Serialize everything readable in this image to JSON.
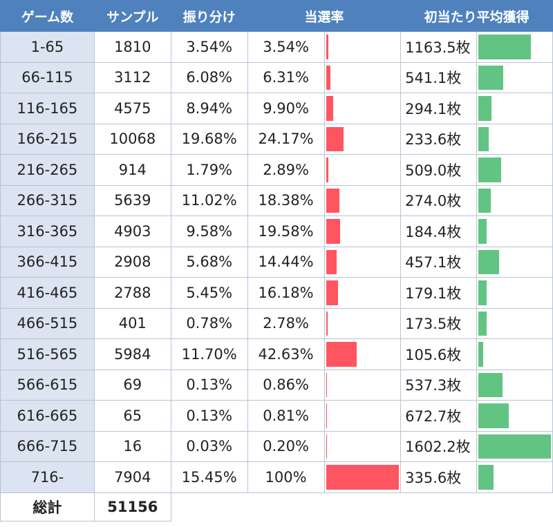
{
  "headers": {
    "games": "ゲーム数",
    "sample": "サンプル",
    "dist": "振り分け",
    "rate": "当選率",
    "avg": "初当たり平均獲得"
  },
  "colors": {
    "header_bg": "#4f81bd",
    "range_bg": "#dbe4f0",
    "rate_bar": "#ff5561",
    "avg_bar": "#62c482"
  },
  "rows": [
    {
      "range": "1-65",
      "sample": "1810",
      "dist": "3.54%",
      "rate": "3.54%",
      "avg": "1163.5枚",
      "rate_value": 3.54,
      "avg_value": 1163.5
    },
    {
      "range": "66-115",
      "sample": "3112",
      "dist": "6.08%",
      "rate": "6.31%",
      "avg": "541.1枚",
      "rate_value": 6.31,
      "avg_value": 541.1
    },
    {
      "range": "116-165",
      "sample": "4575",
      "dist": "8.94%",
      "rate": "9.90%",
      "avg": "294.1枚",
      "rate_value": 9.9,
      "avg_value": 294.1
    },
    {
      "range": "166-215",
      "sample": "10068",
      "dist": "19.68%",
      "rate": "24.17%",
      "avg": "233.6枚",
      "rate_value": 24.17,
      "avg_value": 233.6
    },
    {
      "range": "216-265",
      "sample": "914",
      "dist": "1.79%",
      "rate": "2.89%",
      "avg": "509.0枚",
      "rate_value": 2.89,
      "avg_value": 509.0
    },
    {
      "range": "266-315",
      "sample": "5639",
      "dist": "11.02%",
      "rate": "18.38%",
      "avg": "274.0枚",
      "rate_value": 18.38,
      "avg_value": 274.0
    },
    {
      "range": "316-365",
      "sample": "4903",
      "dist": "9.58%",
      "rate": "19.58%",
      "avg": "184.4枚",
      "rate_value": 19.58,
      "avg_value": 184.4
    },
    {
      "range": "366-415",
      "sample": "2908",
      "dist": "5.68%",
      "rate": "14.44%",
      "avg": "457.1枚",
      "rate_value": 14.44,
      "avg_value": 457.1
    },
    {
      "range": "416-465",
      "sample": "2788",
      "dist": "5.45%",
      "rate": "16.18%",
      "avg": "179.1枚",
      "rate_value": 16.18,
      "avg_value": 179.1
    },
    {
      "range": "466-515",
      "sample": "401",
      "dist": "0.78%",
      "rate": "2.78%",
      "avg": "173.5枚",
      "rate_value": 2.78,
      "avg_value": 173.5
    },
    {
      "range": "516-565",
      "sample": "5984",
      "dist": "11.70%",
      "rate": "42.63%",
      "avg": "105.6枚",
      "rate_value": 42.63,
      "avg_value": 105.6
    },
    {
      "range": "566-615",
      "sample": "69",
      "dist": "0.13%",
      "rate": "0.86%",
      "avg": "537.3枚",
      "rate_value": 0.86,
      "avg_value": 537.3
    },
    {
      "range": "616-665",
      "sample": "65",
      "dist": "0.13%",
      "rate": "0.81%",
      "avg": "672.7枚",
      "rate_value": 0.81,
      "avg_value": 672.7
    },
    {
      "range": "666-715",
      "sample": "16",
      "dist": "0.03%",
      "rate": "0.20%",
      "avg": "1602.2枚",
      "rate_value": 0.2,
      "avg_value": 1602.2
    },
    {
      "range": "716-",
      "sample": "7904",
      "dist": "15.45%",
      "rate": "100%",
      "avg": "335.6枚",
      "rate_value": 100,
      "avg_value": 335.6
    }
  ],
  "total": {
    "label": "総計",
    "value": "51156"
  }
}
